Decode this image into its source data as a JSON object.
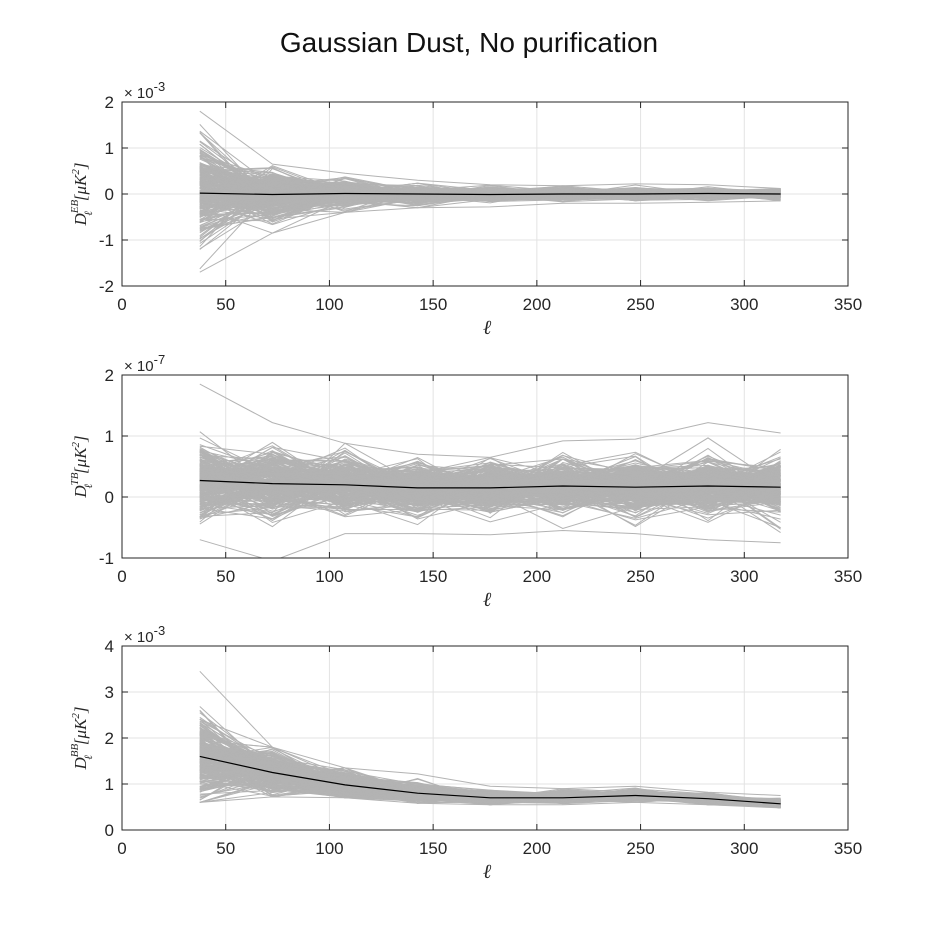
{
  "figure_title": "Gaussian Dust, No purification",
  "colors": {
    "realizations": "#b3b3b3",
    "mean": "#000000",
    "grid": "#e3e3e3",
    "axes": "#262626"
  },
  "chart_data": [
    {
      "type": "line",
      "ylabel": "D_ℓ^{EB} [μK²]",
      "ylabel_parts": {
        "main": "D",
        "sup": "EB",
        "sub": "ℓ",
        "unit_open": "[μK",
        "unit_sup": "2",
        "unit_close": "]"
      },
      "xlabel": "ℓ",
      "exponent_label": {
        "base": "× 10",
        "power": "-3"
      },
      "xlim": [
        0,
        350
      ],
      "ylim": [
        -2,
        2
      ],
      "xticks": [
        0,
        50,
        100,
        150,
        200,
        250,
        300,
        350
      ],
      "yticks": [
        -2,
        -1,
        0,
        1,
        2
      ],
      "grid": true,
      "x": [
        37.5,
        72.5,
        107.5,
        142.5,
        177.5,
        212.5,
        247.5,
        282.5,
        317.5
      ],
      "series": [
        {
          "role": "mean",
          "values": [
            0.02,
            -0.01,
            0.01,
            0.0,
            -0.01,
            0.0,
            0.0,
            0.01,
            0.0
          ]
        }
      ],
      "realization_band": {
        "count": 300,
        "spread": [
          0.55,
          0.25,
          0.15,
          0.09,
          0.07,
          0.06,
          0.06,
          0.05,
          0.05
        ],
        "max": [
          1.8,
          0.65,
          0.45,
          0.3,
          0.2,
          0.18,
          0.22,
          0.2,
          0.12
        ],
        "min": [
          -1.7,
          -0.85,
          -0.4,
          -0.3,
          -0.28,
          -0.2,
          -0.2,
          -0.18,
          -0.15
        ]
      }
    },
    {
      "type": "line",
      "ylabel": "D_ℓ^{TB} [μK²]",
      "ylabel_parts": {
        "main": "D",
        "sup": "TB",
        "sub": "ℓ",
        "unit_open": "[μK",
        "unit_sup": "2",
        "unit_close": "]"
      },
      "xlabel": "ℓ",
      "exponent_label": {
        "base": "× 10",
        "power": "-7"
      },
      "xlim": [
        0,
        350
      ],
      "ylim": [
        -1,
        2
      ],
      "xticks": [
        0,
        50,
        100,
        150,
        200,
        250,
        300,
        350
      ],
      "yticks": [
        -1,
        0,
        1,
        2
      ],
      "grid": true,
      "x": [
        37.5,
        72.5,
        107.5,
        142.5,
        177.5,
        212.5,
        247.5,
        282.5,
        317.5
      ],
      "series": [
        {
          "role": "mean",
          "values": [
            0.27,
            0.22,
            0.2,
            0.15,
            0.15,
            0.18,
            0.16,
            0.18,
            0.16
          ]
        }
      ],
      "realization_band": {
        "count": 300,
        "spread": [
          0.28,
          0.24,
          0.22,
          0.2,
          0.2,
          0.21,
          0.21,
          0.22,
          0.22
        ],
        "max": [
          1.85,
          1.22,
          0.88,
          0.7,
          0.65,
          0.92,
          0.95,
          1.22,
          1.05
        ],
        "min": [
          -0.7,
          -1.05,
          -0.6,
          -0.6,
          -0.62,
          -0.55,
          -0.6,
          -0.7,
          -0.75
        ]
      }
    },
    {
      "type": "line",
      "ylabel": "D_ℓ^{BB} [μK²]",
      "ylabel_parts": {
        "main": "D",
        "sup": "BB",
        "sub": "ℓ",
        "unit_open": "[μK",
        "unit_sup": "2",
        "unit_close": "]"
      },
      "xlabel": "ℓ",
      "exponent_label": {
        "base": "× 10",
        "power": "-3"
      },
      "xlim": [
        0,
        350
      ],
      "ylim": [
        0,
        4
      ],
      "xticks": [
        0,
        50,
        100,
        150,
        200,
        250,
        300,
        350
      ],
      "yticks": [
        0,
        1,
        2,
        3,
        4
      ],
      "grid": true,
      "x": [
        37.5,
        72.5,
        107.5,
        142.5,
        177.5,
        212.5,
        247.5,
        282.5,
        317.5
      ],
      "series": [
        {
          "role": "mean",
          "values": [
            1.6,
            1.25,
            0.98,
            0.8,
            0.7,
            0.7,
            0.75,
            0.68,
            0.57
          ]
        }
      ],
      "realization_band": {
        "count": 300,
        "spread": [
          0.42,
          0.22,
          0.15,
          0.1,
          0.07,
          0.06,
          0.06,
          0.05,
          0.05
        ],
        "max": [
          3.45,
          1.8,
          1.35,
          1.22,
          0.95,
          0.9,
          0.95,
          0.82,
          0.75
        ],
        "min": [
          0.6,
          0.72,
          0.7,
          0.58,
          0.55,
          0.55,
          0.6,
          0.55,
          0.48
        ]
      }
    }
  ]
}
